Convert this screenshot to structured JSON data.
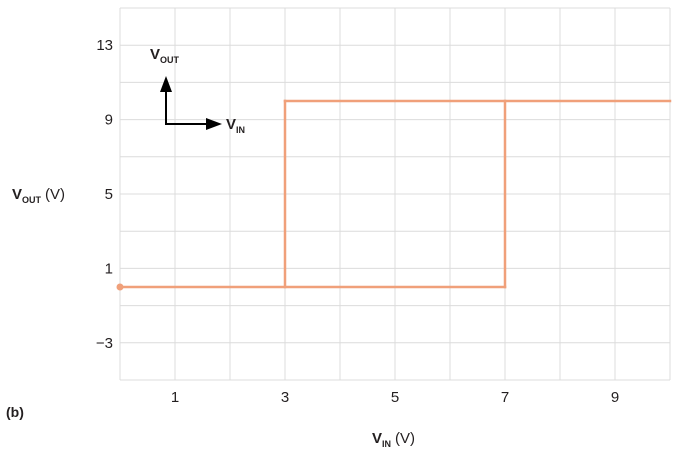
{
  "chart_data": {
    "type": "line",
    "panel_label": "(b)",
    "xlabel": {
      "main": "V",
      "sub": "IN",
      "unit": "(V)"
    },
    "ylabel": {
      "main": "V",
      "sub": "OUT",
      "unit": "(V)"
    },
    "xlim": [
      0,
      10
    ],
    "ylim": [
      -5,
      15
    ],
    "x_ticks": [
      1,
      3,
      5,
      7,
      9
    ],
    "x_tick_labels": [
      "1",
      "3",
      "5",
      "7",
      "9"
    ],
    "y_ticks": [
      13,
      9,
      5,
      1,
      -3
    ],
    "y_tick_labels": [
      "13",
      "9",
      "5",
      "1",
      "−3"
    ],
    "grid": true,
    "series": [
      {
        "color": "#f0a07a",
        "segments": [
          [
            [
              0,
              0
            ],
            [
              7,
              0
            ]
          ],
          [
            [
              3,
              10
            ],
            [
              10,
              10
            ]
          ],
          [
            [
              3,
              0
            ],
            [
              3,
              10
            ]
          ],
          [
            [
              7,
              0
            ],
            [
              7,
              10
            ]
          ]
        ],
        "start_marker": [
          0,
          0
        ]
      }
    ],
    "inset_annotation": {
      "y_arrow_label": {
        "main": "V",
        "sub": "OUT"
      },
      "x_arrow_label": {
        "main": "V",
        "sub": "IN"
      }
    }
  }
}
